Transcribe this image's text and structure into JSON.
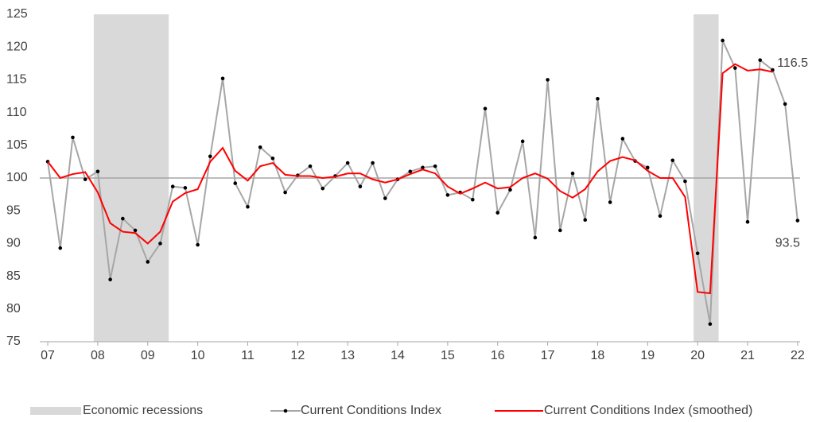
{
  "chart_data": {
    "type": "line",
    "x": [
      2007,
      2007.25,
      2007.5,
      2007.75,
      2008,
      2008.25,
      2008.5,
      2008.75,
      2009,
      2009.25,
      2009.5,
      2009.75,
      2010,
      2010.25,
      2010.5,
      2010.75,
      2011,
      2011.25,
      2011.5,
      2011.75,
      2012,
      2012.25,
      2012.5,
      2012.75,
      2013,
      2013.25,
      2013.5,
      2013.75,
      2014,
      2014.25,
      2014.5,
      2014.75,
      2015,
      2015.25,
      2015.5,
      2015.75,
      2016,
      2016.25,
      2016.5,
      2016.75,
      2017,
      2017.25,
      2017.5,
      2017.75,
      2018,
      2018.25,
      2018.5,
      2018.75,
      2019,
      2019.25,
      2019.5,
      2019.75,
      2020,
      2020.25,
      2020.5,
      2020.75,
      2021,
      2021.25,
      2021.5,
      2021.75,
      2022
    ],
    "series": [
      {
        "name": "Current Conditions Index",
        "color": "#a6a6a6",
        "marker_color": "#000000",
        "markers": true,
        "values": [
          102.5,
          89.3,
          106.2,
          99.8,
          101.0,
          84.5,
          93.8,
          92.0,
          87.2,
          90.0,
          98.7,
          98.5,
          89.8,
          103.3,
          115.2,
          99.2,
          95.6,
          104.7,
          103.0,
          97.8,
          100.4,
          101.8,
          98.4,
          100.3,
          102.3,
          98.7,
          102.3,
          96.9,
          99.8,
          101.0,
          101.6,
          101.8,
          97.4,
          97.8,
          96.7,
          110.6,
          94.7,
          98.2,
          105.6,
          90.9,
          115.0,
          92.0,
          100.7,
          93.6,
          112.1,
          96.3,
          106.0,
          102.6,
          101.6,
          94.2,
          102.7,
          99.5,
          88.5,
          77.7,
          121.0,
          116.8,
          93.3,
          118.0,
          116.5,
          111.3,
          93.5
        ]
      },
      {
        "name": "Current Conditions Index (smoothed)",
        "color": "#ff0000",
        "markers": false,
        "values": [
          102.5,
          100.0,
          100.6,
          100.9,
          97.8,
          93.1,
          91.8,
          91.6,
          90.0,
          91.8,
          96.4,
          97.7,
          98.3,
          102.5,
          104.6,
          101.1,
          99.6,
          101.8,
          102.3,
          100.5,
          100.3,
          100.3,
          100.0,
          100.2,
          100.7,
          100.7,
          99.8,
          99.3,
          99.8,
          100.6,
          101.3,
          100.7,
          98.7,
          97.6,
          98.4,
          99.3,
          98.4,
          98.6,
          100.0,
          100.7,
          99.9,
          98.0,
          97.0,
          98.3,
          101.0,
          102.6,
          103.2,
          102.7,
          101.1,
          100.0,
          100.0,
          97.1,
          82.6,
          82.4,
          116.0,
          117.4,
          116.4,
          116.6,
          116.2,
          null,
          null
        ]
      }
    ],
    "recessions": {
      "name": "Economic recessions",
      "color": "#d9d9d9",
      "periods": [
        [
          2007.92,
          2009.42
        ],
        [
          2019.92,
          2020.42
        ]
      ]
    },
    "reference_line": 100,
    "annotations": [
      {
        "label": "116.5",
        "x": 2021.9,
        "y": 117.5
      },
      {
        "label": "93.5",
        "x": 2021.8,
        "y": 90.0
      }
    ],
    "xlim": [
      2006.84,
      2022.05
    ],
    "xticks": [
      {
        "value": 2007,
        "label": "07"
      },
      {
        "value": 2008,
        "label": "08"
      },
      {
        "value": 2009,
        "label": "09"
      },
      {
        "value": 2010,
        "label": "10"
      },
      {
        "value": 2011,
        "label": "11"
      },
      {
        "value": 2012,
        "label": "12"
      },
      {
        "value": 2013,
        "label": "13"
      },
      {
        "value": 2014,
        "label": "14"
      },
      {
        "value": 2015,
        "label": "15"
      },
      {
        "value": 2016,
        "label": "16"
      },
      {
        "value": 2017,
        "label": "17"
      },
      {
        "value": 2018,
        "label": "18"
      },
      {
        "value": 2019,
        "label": "19"
      },
      {
        "value": 2020,
        "label": "20"
      },
      {
        "value": 2021,
        "label": "21"
      },
      {
        "value": 2022,
        "label": "22"
      }
    ],
    "ylim": [
      75,
      125
    ],
    "yticks": [
      75,
      80,
      85,
      90,
      95,
      100,
      105,
      110,
      115,
      120,
      125
    ],
    "grid": false,
    "legend": "bottom"
  }
}
